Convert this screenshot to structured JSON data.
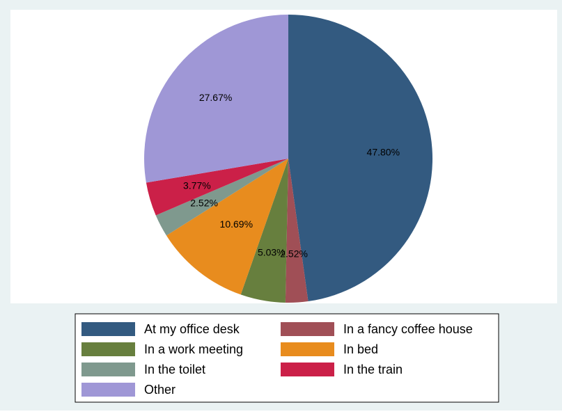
{
  "chart_data": {
    "type": "pie",
    "title": "",
    "start": "12 o'clock",
    "direction": "clockwise",
    "slices": [
      {
        "label": "At my office desk",
        "value": 47.8,
        "display": "47.80%",
        "color": "#335a80"
      },
      {
        "label": "In a fancy coffee house",
        "value": 2.52,
        "display": "2.52%",
        "color": "#a04f56"
      },
      {
        "label": "In a work meeting",
        "value": 5.03,
        "display": "5.03%",
        "color": "#677f3e"
      },
      {
        "label": "In bed",
        "value": 10.69,
        "display": "10.69%",
        "color": "#e88c1e"
      },
      {
        "label": "In the toilet",
        "value": 2.52,
        "display": "2.52%",
        "color": "#7f998e"
      },
      {
        "label": "In the train",
        "value": 3.77,
        "display": "3.77%",
        "color": "#cb2048"
      },
      {
        "label": "Other",
        "value": 27.67,
        "display": "27.67%",
        "color": "#9f97d6"
      }
    ],
    "legend": {
      "placement": "bottom",
      "columns": 2
    },
    "colors": {
      "background": "#eaf2f3",
      "plot_background": "#ffffff"
    }
  }
}
